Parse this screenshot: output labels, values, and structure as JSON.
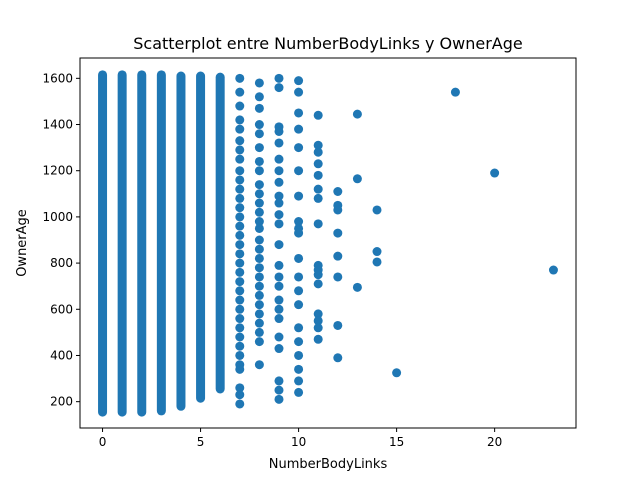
{
  "chart_data": {
    "type": "scatter",
    "title": "Scatterplot entre NumberBodyLinks y OwnerAge",
    "xlabel": "NumberBodyLinks",
    "ylabel": "OwnerAge",
    "xlim": [
      -1.15,
      24.15
    ],
    "ylim": [
      86,
      1688
    ],
    "xticks": [
      0,
      5,
      10,
      15,
      20
    ],
    "yticks": [
      200,
      400,
      600,
      800,
      1000,
      1200,
      1400,
      1600
    ],
    "grid": false,
    "legend": "none",
    "marker_color": "#1f77b4",
    "dense_columns": [
      {
        "x": 0,
        "y_range": [
          155,
          1615
        ]
      },
      {
        "x": 1,
        "y_range": [
          155,
          1615
        ]
      },
      {
        "x": 2,
        "y_range": [
          155,
          1615
        ]
      },
      {
        "x": 3,
        "y_range": [
          160,
          1615
        ]
      },
      {
        "x": 4,
        "y_range": [
          180,
          1610
        ]
      },
      {
        "x": 5,
        "y_range": [
          215,
          1610
        ]
      },
      {
        "x": 6,
        "y_range": [
          255,
          1605
        ]
      }
    ],
    "points": [
      {
        "x": 7,
        "y": 1600
      },
      {
        "x": 7,
        "y": 1540
      },
      {
        "x": 7,
        "y": 1480
      },
      {
        "x": 7,
        "y": 1420
      },
      {
        "x": 7,
        "y": 1380
      },
      {
        "x": 7,
        "y": 1330
      },
      {
        "x": 7,
        "y": 1290
      },
      {
        "x": 7,
        "y": 1250
      },
      {
        "x": 7,
        "y": 1200
      },
      {
        "x": 7,
        "y": 1160
      },
      {
        "x": 7,
        "y": 1120
      },
      {
        "x": 7,
        "y": 1080
      },
      {
        "x": 7,
        "y": 1040
      },
      {
        "x": 7,
        "y": 1000
      },
      {
        "x": 7,
        "y": 960
      },
      {
        "x": 7,
        "y": 920
      },
      {
        "x": 7,
        "y": 880
      },
      {
        "x": 7,
        "y": 840
      },
      {
        "x": 7,
        "y": 800
      },
      {
        "x": 7,
        "y": 760
      },
      {
        "x": 7,
        "y": 720
      },
      {
        "x": 7,
        "y": 680
      },
      {
        "x": 7,
        "y": 640
      },
      {
        "x": 7,
        "y": 600
      },
      {
        "x": 7,
        "y": 560
      },
      {
        "x": 7,
        "y": 520
      },
      {
        "x": 7,
        "y": 480
      },
      {
        "x": 7,
        "y": 440
      },
      {
        "x": 7,
        "y": 400
      },
      {
        "x": 7,
        "y": 360
      },
      {
        "x": 7,
        "y": 340
      },
      {
        "x": 7,
        "y": 260
      },
      {
        "x": 7,
        "y": 230
      },
      {
        "x": 7,
        "y": 190
      },
      {
        "x": 8,
        "y": 1580
      },
      {
        "x": 8,
        "y": 1520
      },
      {
        "x": 8,
        "y": 1470
      },
      {
        "x": 8,
        "y": 1400
      },
      {
        "x": 8,
        "y": 1360
      },
      {
        "x": 8,
        "y": 1300
      },
      {
        "x": 8,
        "y": 1240
      },
      {
        "x": 8,
        "y": 1200
      },
      {
        "x": 8,
        "y": 1140
      },
      {
        "x": 8,
        "y": 1100
      },
      {
        "x": 8,
        "y": 1060
      },
      {
        "x": 8,
        "y": 1020
      },
      {
        "x": 8,
        "y": 980
      },
      {
        "x": 8,
        "y": 950
      },
      {
        "x": 8,
        "y": 900
      },
      {
        "x": 8,
        "y": 860
      },
      {
        "x": 8,
        "y": 820
      },
      {
        "x": 8,
        "y": 780
      },
      {
        "x": 8,
        "y": 740
      },
      {
        "x": 8,
        "y": 700
      },
      {
        "x": 8,
        "y": 660
      },
      {
        "x": 8,
        "y": 620
      },
      {
        "x": 8,
        "y": 580
      },
      {
        "x": 8,
        "y": 540
      },
      {
        "x": 8,
        "y": 500
      },
      {
        "x": 8,
        "y": 460
      },
      {
        "x": 8,
        "y": 360
      },
      {
        "x": 9,
        "y": 1600
      },
      {
        "x": 9,
        "y": 1560
      },
      {
        "x": 9,
        "y": 1390
      },
      {
        "x": 9,
        "y": 1370
      },
      {
        "x": 9,
        "y": 1320
      },
      {
        "x": 9,
        "y": 1250
      },
      {
        "x": 9,
        "y": 1200
      },
      {
        "x": 9,
        "y": 1150
      },
      {
        "x": 9,
        "y": 1090
      },
      {
        "x": 9,
        "y": 1060
      },
      {
        "x": 9,
        "y": 1010
      },
      {
        "x": 9,
        "y": 970
      },
      {
        "x": 9,
        "y": 880
      },
      {
        "x": 9,
        "y": 790
      },
      {
        "x": 9,
        "y": 740
      },
      {
        "x": 9,
        "y": 700
      },
      {
        "x": 9,
        "y": 640
      },
      {
        "x": 9,
        "y": 600
      },
      {
        "x": 9,
        "y": 560
      },
      {
        "x": 9,
        "y": 480
      },
      {
        "x": 9,
        "y": 430
      },
      {
        "x": 9,
        "y": 290
      },
      {
        "x": 9,
        "y": 250
      },
      {
        "x": 9,
        "y": 210
      },
      {
        "x": 10,
        "y": 1590
      },
      {
        "x": 10,
        "y": 1540
      },
      {
        "x": 10,
        "y": 1450
      },
      {
        "x": 10,
        "y": 1380
      },
      {
        "x": 10,
        "y": 1300
      },
      {
        "x": 10,
        "y": 1200
      },
      {
        "x": 10,
        "y": 1090
      },
      {
        "x": 10,
        "y": 980
      },
      {
        "x": 10,
        "y": 950
      },
      {
        "x": 10,
        "y": 930
      },
      {
        "x": 10,
        "y": 820
      },
      {
        "x": 10,
        "y": 740
      },
      {
        "x": 10,
        "y": 680
      },
      {
        "x": 10,
        "y": 620
      },
      {
        "x": 10,
        "y": 520
      },
      {
        "x": 10,
        "y": 460
      },
      {
        "x": 10,
        "y": 400
      },
      {
        "x": 10,
        "y": 340
      },
      {
        "x": 10,
        "y": 290
      },
      {
        "x": 10,
        "y": 240
      },
      {
        "x": 11,
        "y": 1440
      },
      {
        "x": 11,
        "y": 1310
      },
      {
        "x": 11,
        "y": 1280
      },
      {
        "x": 11,
        "y": 1230
      },
      {
        "x": 11,
        "y": 1180
      },
      {
        "x": 11,
        "y": 1120
      },
      {
        "x": 11,
        "y": 1080
      },
      {
        "x": 11,
        "y": 970
      },
      {
        "x": 11,
        "y": 790
      },
      {
        "x": 11,
        "y": 770
      },
      {
        "x": 11,
        "y": 750
      },
      {
        "x": 11,
        "y": 710
      },
      {
        "x": 11,
        "y": 580
      },
      {
        "x": 11,
        "y": 550
      },
      {
        "x": 11,
        "y": 520
      },
      {
        "x": 11,
        "y": 470
      },
      {
        "x": 12,
        "y": 1110
      },
      {
        "x": 12,
        "y": 1050
      },
      {
        "x": 12,
        "y": 1030
      },
      {
        "x": 12,
        "y": 930
      },
      {
        "x": 12,
        "y": 830
      },
      {
        "x": 12,
        "y": 740
      },
      {
        "x": 12,
        "y": 530
      },
      {
        "x": 12,
        "y": 390
      },
      {
        "x": 13,
        "y": 1445
      },
      {
        "x": 13,
        "y": 1165
      },
      {
        "x": 13,
        "y": 695
      },
      {
        "x": 14,
        "y": 1030
      },
      {
        "x": 14,
        "y": 850
      },
      {
        "x": 14,
        "y": 805
      },
      {
        "x": 15,
        "y": 325
      },
      {
        "x": 18,
        "y": 1540
      },
      {
        "x": 20,
        "y": 1190
      },
      {
        "x": 23,
        "y": 770
      }
    ]
  }
}
